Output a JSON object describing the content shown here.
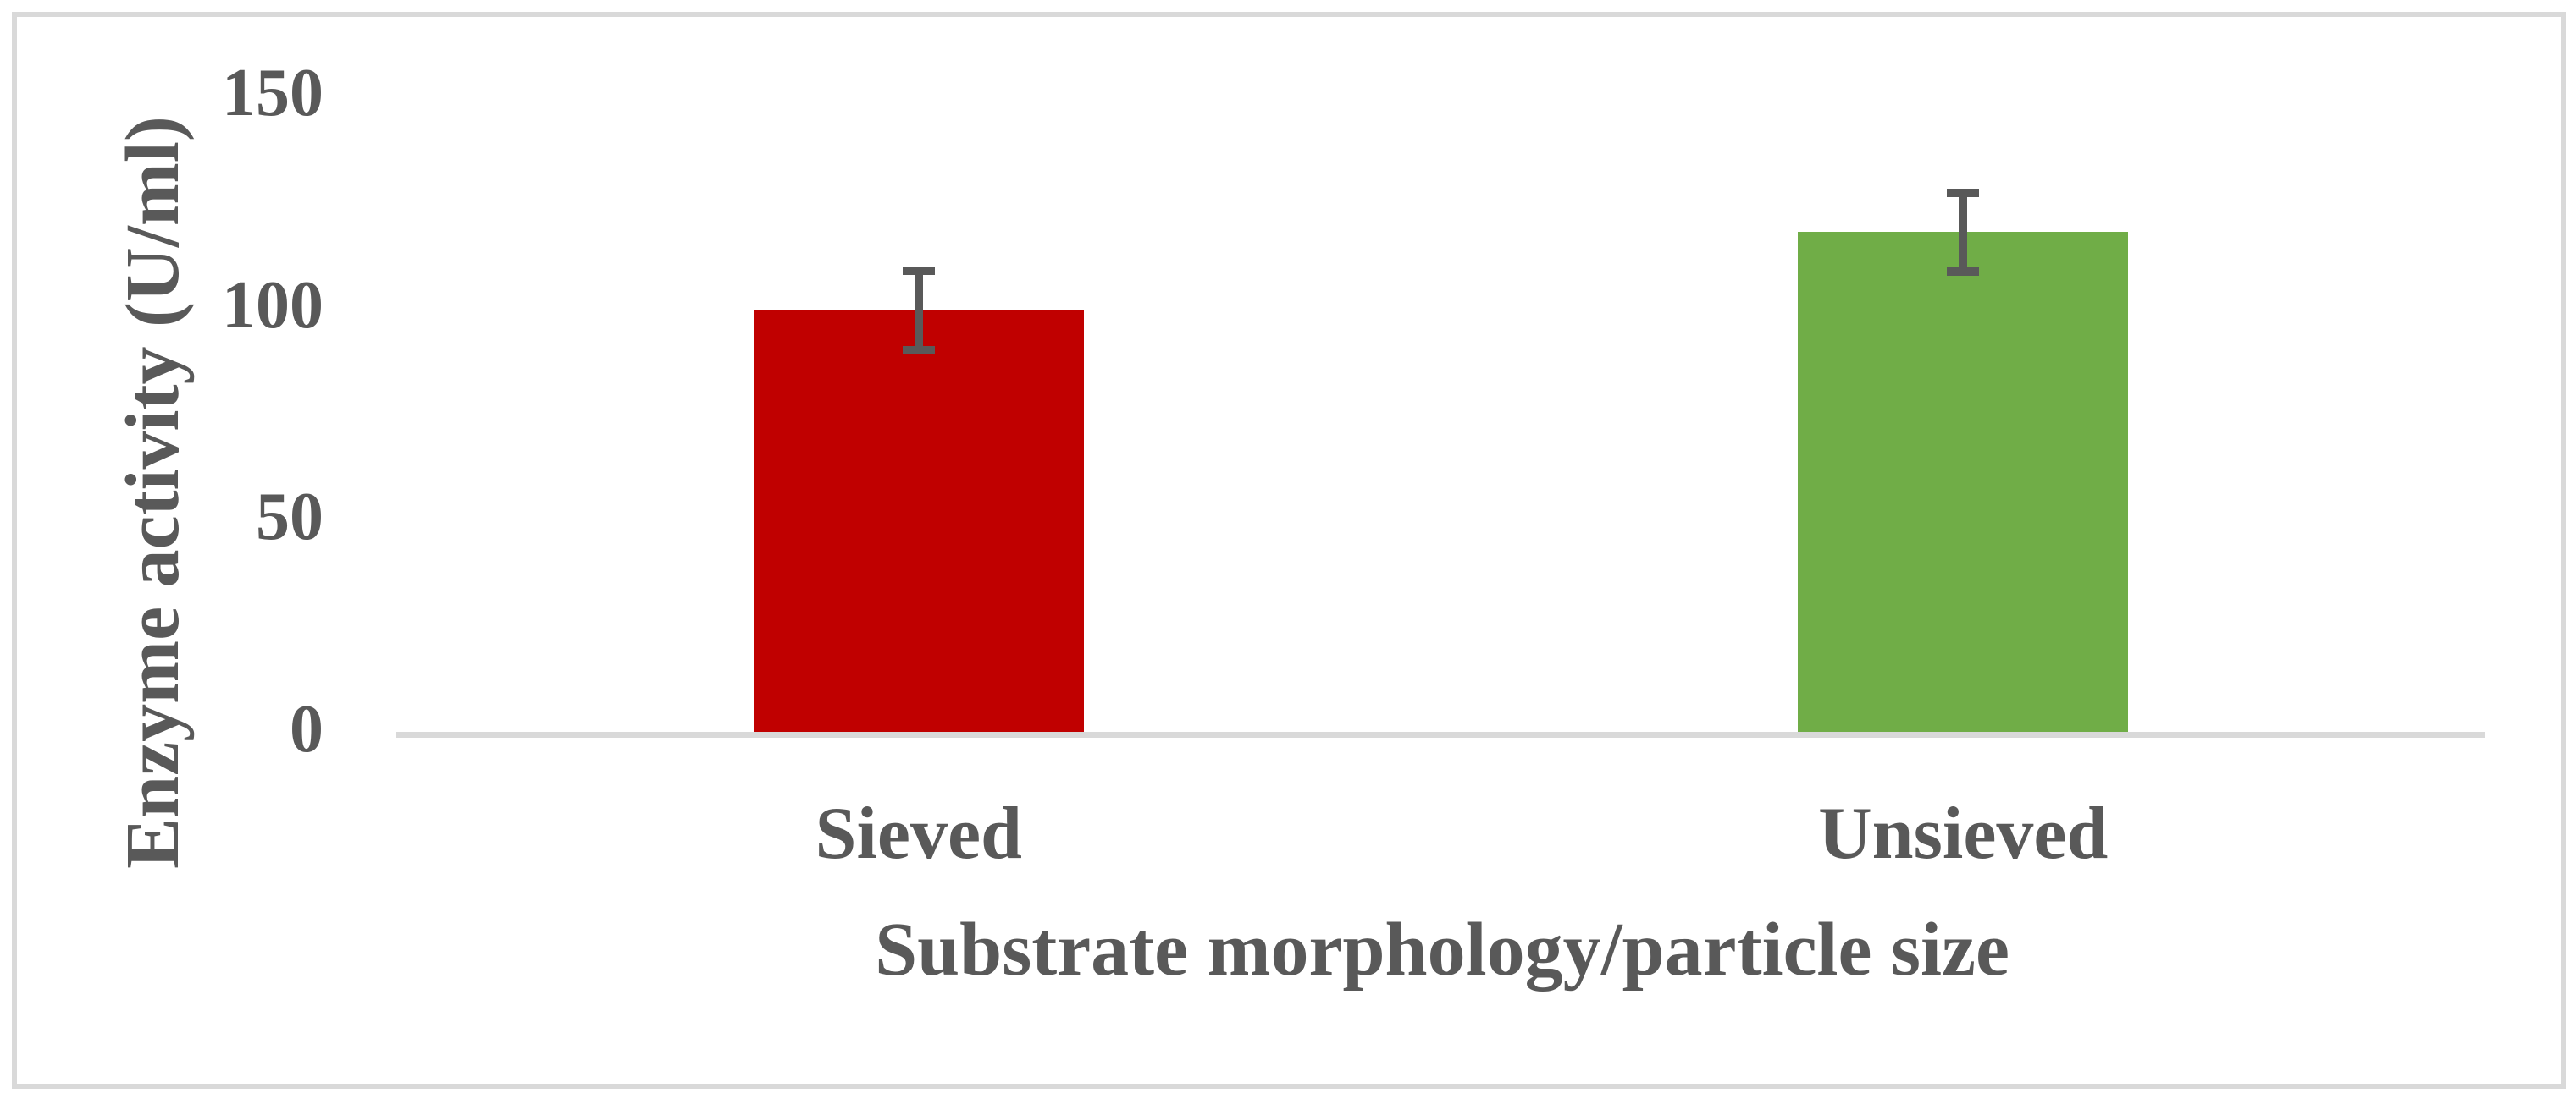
{
  "chart_data": {
    "type": "bar",
    "categories": [
      "Sieved",
      "Unsieved"
    ],
    "values": [
      99.3,
      117.8
    ],
    "errors": [
      9.4,
      9.3
    ],
    "bar_colors": [
      "#C00000",
      "#70AD47"
    ],
    "xlabel": "Substrate morphology/particle size",
    "ylabel": "Enzyme activity (U/ml)",
    "ylim": [
      0,
      150
    ],
    "yticks": [
      0,
      50,
      100,
      150
    ],
    "grid": false,
    "legend": "none",
    "error_bar_color": "#595959",
    "text_color": "#595959",
    "axis_line_color": "#D9D9D9",
    "border_color": "#D9D9D9",
    "background_color": "#FFFFFF"
  }
}
